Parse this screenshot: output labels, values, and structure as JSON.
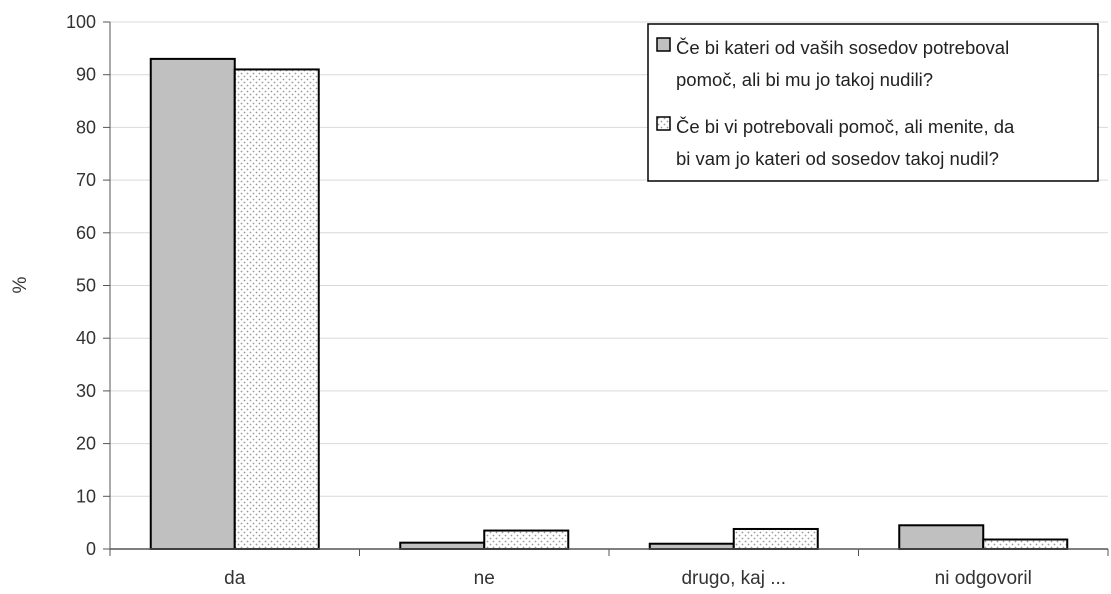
{
  "chart_data": {
    "type": "bar",
    "categories": [
      "da",
      "ne",
      "drugo, kaj ...",
      "ni odgovoril"
    ],
    "series": [
      {
        "name": "Če bi kateri od vaših sosedov potreboval pomoč, ali bi mu jo takoj nudili?",
        "name_lines": [
          "Če bi kateri od vaših sosedov potreboval",
          "pomoč, ali bi mu jo takoj nudili?"
        ],
        "values": [
          93,
          1.2,
          1.0,
          4.5
        ],
        "fill": "#c0c0c0",
        "pattern": "solid"
      },
      {
        "name": "Če bi vi potrebovali pomoč, ali menite, da bi vam jo kateri od sosedov takoj nudil?",
        "name_lines": [
          "Če bi vi potrebovali pomoč, ali menite, da",
          "bi vam jo kateri od sosedov takoj nudil?"
        ],
        "values": [
          91,
          3.5,
          3.8,
          1.8
        ],
        "fill": "#ffffff",
        "pattern": "dotted"
      }
    ],
    "xlabel": "",
    "ylabel": "%",
    "ylim": [
      0,
      100
    ],
    "yticks": [
      0,
      10,
      20,
      30,
      40,
      50,
      60,
      70,
      80,
      90,
      100
    ],
    "grid": true,
    "legend_position": "top-right"
  }
}
